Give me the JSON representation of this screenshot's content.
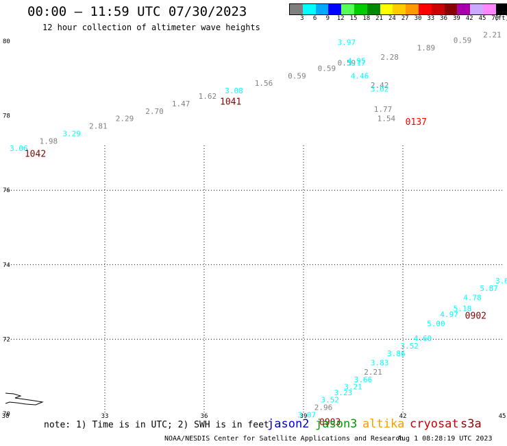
{
  "header": {
    "title": "00:00 – 11:59 UTC 07/30/2023",
    "subtitle": "12 hour collection of altimeter wave heights"
  },
  "legend": {
    "labels": [
      "3",
      "6",
      "9",
      "12",
      "15",
      "18",
      "21",
      "24",
      "27",
      "30",
      "33",
      "36",
      "39",
      "42",
      "45",
      "70",
      "(ft)"
    ],
    "colors": [
      "#7f7f7f",
      "#00ffff",
      "#00aaff",
      "#0000ff",
      "#55ff55",
      "#00cc00",
      "#008800",
      "#ffff00",
      "#ffcc00",
      "#ff9900",
      "#ff0000",
      "#cc0000",
      "#880000",
      "#aa00aa",
      "#ccaaff",
      "#ff88ff",
      "#000000"
    ]
  },
  "footer": {
    "note": "note: 1) Time is in UTC; 2) SWH is in feet",
    "satellites": [
      {
        "name": "jason2",
        "color": "#0000cc"
      },
      {
        "name": "jason3",
        "color": "#009900"
      },
      {
        "name": "altika",
        "color": "#ff9900"
      },
      {
        "name": "cryosat",
        "color": "#cc0000"
      },
      {
        "name": "s3a",
        "color": "#990000"
      }
    ],
    "credit": "NOAA/NESDIS Center for Satellite Applications and Research",
    "generated": "Aug  1 08:28:19 UTC 2023"
  },
  "chart_data": {
    "type": "scatter",
    "xlim": [
      30,
      45
    ],
    "ylim": [
      70,
      80
    ],
    "x_ticks": [
      30,
      33,
      36,
      39,
      42,
      45
    ],
    "y_ticks": [
      70,
      72,
      74,
      76,
      78,
      80
    ],
    "grid": "dotted",
    "points": [
      {
        "x": 30.4,
        "y": 77.05,
        "label": "3.06",
        "color": "#00ffff"
      },
      {
        "x": 31.3,
        "y": 77.25,
        "label": "1.98",
        "color": "#7f7f7f"
      },
      {
        "x": 32.0,
        "y": 77.45,
        "label": "3.29",
        "color": "#00ffff"
      },
      {
        "x": 32.8,
        "y": 77.65,
        "label": "2.81",
        "color": "#7f7f7f"
      },
      {
        "x": 33.6,
        "y": 77.85,
        "label": "2.29",
        "color": "#7f7f7f"
      },
      {
        "x": 34.5,
        "y": 78.05,
        "label": "2.70",
        "color": "#7f7f7f"
      },
      {
        "x": 35.3,
        "y": 78.25,
        "label": "1.47",
        "color": "#7f7f7f"
      },
      {
        "x": 36.1,
        "y": 78.45,
        "label": "1.62",
        "color": "#7f7f7f"
      },
      {
        "x": 36.9,
        "y": 78.6,
        "label": "3.08",
        "color": "#00ffff"
      },
      {
        "x": 37.8,
        "y": 78.8,
        "label": "1.56",
        "color": "#7f7f7f"
      },
      {
        "x": 38.8,
        "y": 79.0,
        "label": "0.59",
        "color": "#7f7f7f"
      },
      {
        "x": 39.7,
        "y": 79.2,
        "label": "0.59",
        "color": "#7f7f7f"
      },
      {
        "x": 40.3,
        "y": 79.35,
        "label": "0.59",
        "color": "#7f7f7f"
      },
      {
        "x": 40.6,
        "y": 79.4,
        "label": "4.95",
        "color": "#00ffff"
      },
      {
        "x": 40.6,
        "y": 79.35,
        "label": "3.17",
        "color": "#00ffff"
      },
      {
        "x": 40.7,
        "y": 79.0,
        "label": "4.46",
        "color": "#00ffff"
      },
      {
        "x": 40.3,
        "y": 79.9,
        "label": "3.97",
        "color": "#00ffff"
      },
      {
        "x": 41.6,
        "y": 79.5,
        "label": "2.28",
        "color": "#7f7f7f"
      },
      {
        "x": 42.7,
        "y": 79.75,
        "label": "1.89",
        "color": "#7f7f7f"
      },
      {
        "x": 43.8,
        "y": 79.95,
        "label": "0.59",
        "color": "#7f7f7f"
      },
      {
        "x": 44.7,
        "y": 80.1,
        "label": "2.21",
        "color": "#7f7f7f"
      },
      {
        "x": 41.3,
        "y": 78.75,
        "label": "2.42",
        "color": "#7f7f7f"
      },
      {
        "x": 41.3,
        "y": 78.65,
        "label": "3.02",
        "color": "#00ffff"
      },
      {
        "x": 41.4,
        "y": 78.1,
        "label": "1.77",
        "color": "#7f7f7f"
      },
      {
        "x": 41.5,
        "y": 77.85,
        "label": "1.54",
        "color": "#7f7f7f"
      },
      {
        "x": 39.1,
        "y": 69.9,
        "label": "3.07",
        "color": "#00ffff"
      },
      {
        "x": 39.6,
        "y": 70.1,
        "label": "2.96",
        "color": "#7f7f7f"
      },
      {
        "x": 39.8,
        "y": 70.3,
        "label": "3.52",
        "color": "#00ffff"
      },
      {
        "x": 40.2,
        "y": 70.5,
        "label": "3.23",
        "color": "#00ffff"
      },
      {
        "x": 40.5,
        "y": 70.65,
        "label": "3.21",
        "color": "#00ffff"
      },
      {
        "x": 40.8,
        "y": 70.85,
        "label": "3.66",
        "color": "#00ffff"
      },
      {
        "x": 41.1,
        "y": 71.05,
        "label": "2.21",
        "color": "#7f7f7f"
      },
      {
        "x": 41.3,
        "y": 71.3,
        "label": "3.83",
        "color": "#00ffff"
      },
      {
        "x": 41.8,
        "y": 71.55,
        "label": "3.86",
        "color": "#00ffff"
      },
      {
        "x": 42.2,
        "y": 71.75,
        "label": "3.52",
        "color": "#00ffff"
      },
      {
        "x": 42.6,
        "y": 71.95,
        "label": "4.60",
        "color": "#00ffff"
      },
      {
        "x": 43.0,
        "y": 72.35,
        "label": "5.00",
        "color": "#00ffff"
      },
      {
        "x": 43.4,
        "y": 72.6,
        "label": "4.97",
        "color": "#00ffff"
      },
      {
        "x": 43.8,
        "y": 72.75,
        "label": "5.18",
        "color": "#00ffff"
      },
      {
        "x": 44.1,
        "y": 73.05,
        "label": "4.78",
        "color": "#00ffff"
      },
      {
        "x": 44.6,
        "y": 73.3,
        "label": "5.87",
        "color": "#00ffff"
      },
      {
        "x": 45.0,
        "y": 73.5,
        "label": "3.6",
        "color": "#00ffff"
      }
    ],
    "annotations": [
      {
        "x": 30.9,
        "y": 76.9,
        "text": "1042",
        "color": "#880000"
      },
      {
        "x": 36.8,
        "y": 78.3,
        "text": "1041",
        "color": "#880000"
      },
      {
        "x": 42.4,
        "y": 77.75,
        "text": "0137",
        "color": "#ff0000"
      },
      {
        "x": 44.2,
        "y": 72.55,
        "text": "0902",
        "color": "#880000"
      },
      {
        "x": 39.8,
        "y": 69.7,
        "text": "0903",
        "color": "#880000"
      }
    ]
  }
}
